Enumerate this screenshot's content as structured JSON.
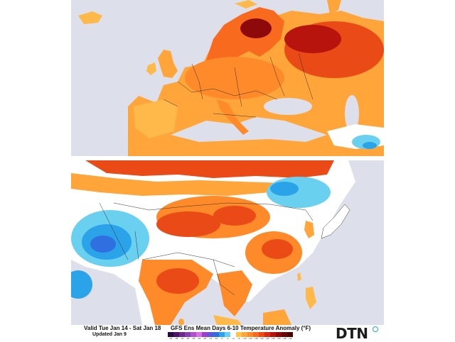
{
  "valid_text": "Valid Tue Jan 14 - Sat Jan 18",
  "updated_text": "Updated Jan 9",
  "legend_title": "GFS Ens Mean Days 6-10 Temperature Anomaly (°F)",
  "legend_ticks": [
    "-42",
    "-38",
    "-34",
    "-30",
    "-26",
    "-22",
    "-18",
    "-14",
    "-10",
    "-6",
    "-2",
    "+2",
    "+6",
    "+10",
    "+14",
    "+18",
    "+22",
    "+26",
    "+30",
    "+34",
    "+38",
    "+42"
  ],
  "legend_colors": [
    "#2a0a3e",
    "#4b1466",
    "#6a2a8a",
    "#8a3fb0",
    "#b04fcf",
    "#d86ee0",
    "#9a3fd0",
    "#5a5ad8",
    "#2f6fe0",
    "#2aa3e8",
    "#6ad0f0",
    "#ffffff",
    "#ffc54d",
    "#ffa53a",
    "#ff8a2a",
    "#f86a1e",
    "#ea4a16",
    "#d62a12",
    "#b8140e",
    "#8e0a0a",
    "#6a0606",
    "#4a0303"
  ],
  "logo_text": "DTN",
  "colors": {
    "ocean": "#dde0ea",
    "land_neutral": "#ffffff",
    "warm_light": "#ffb84a",
    "warm_mid": "#ff8a2a",
    "warm_strong": "#e8421a",
    "warm_extreme": "#9a0a0a",
    "cold_light": "#6ad0f0",
    "cold_mid": "#2aa3e8",
    "cold_strong": "#2f6fe0",
    "border": "#333333"
  }
}
